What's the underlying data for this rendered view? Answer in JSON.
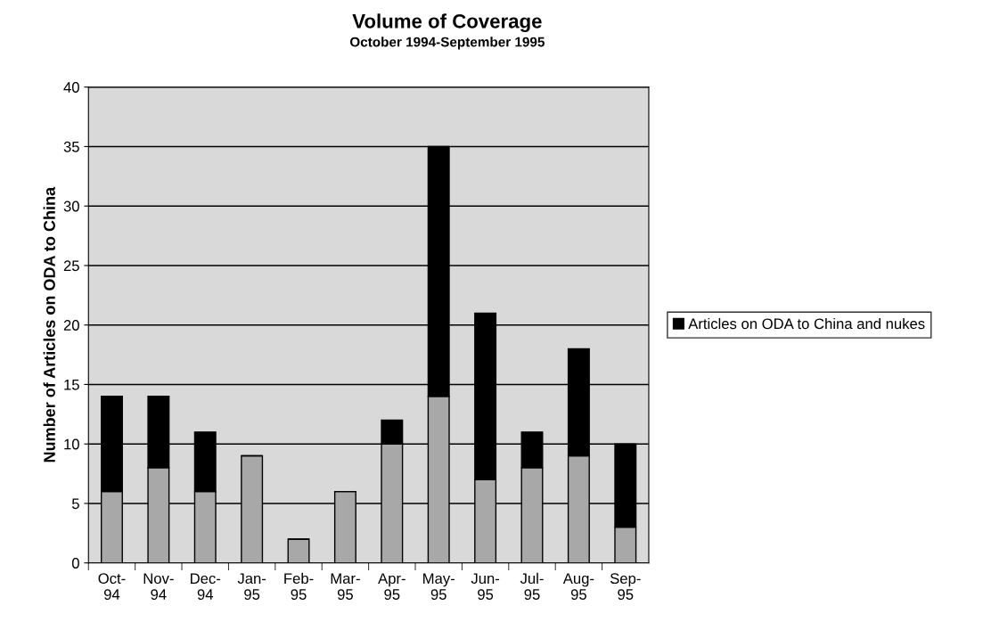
{
  "chart_data": {
    "type": "bar",
    "title": "Volume of Coverage",
    "subtitle": "October 1994-September 1995",
    "ylabel": "Number of Articles on ODA to China",
    "categories": [
      "Oct-\n94",
      "Nov-\n94",
      "Dec-\n94",
      "Jan-\n95",
      "Feb-\n95",
      "Mar-\n95",
      "Apr-\n95",
      "May-\n95",
      "Jun-\n95",
      "Jul-\n95",
      "Aug-\n95",
      "Sep-\n95"
    ],
    "stacked": true,
    "series": [
      {
        "color": "#a8a8a8",
        "values": [
          6,
          8,
          6,
          9,
          2,
          6,
          10,
          14,
          7,
          8,
          9,
          3
        ]
      },
      {
        "name": "Articles on ODA to China and nukes",
        "color": "#000000",
        "values": [
          8,
          6,
          5,
          0,
          0,
          0,
          2,
          21,
          14,
          3,
          9,
          7
        ]
      }
    ],
    "ylim": [
      0,
      40
    ],
    "yticks": [
      0,
      5,
      10,
      15,
      20,
      25,
      30,
      35,
      40
    ],
    "grid": "y",
    "legend": "right"
  }
}
